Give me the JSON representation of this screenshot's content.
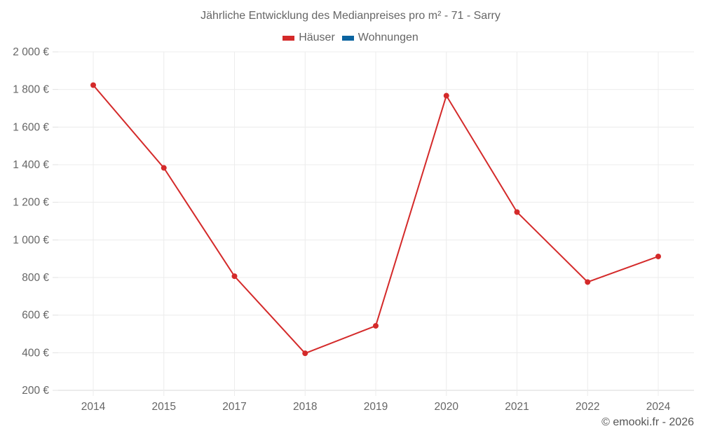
{
  "chart_data": {
    "type": "line",
    "title": "Jährliche Entwicklung des Medianpreises pro m² - 71 - Sarry",
    "xlabel": "",
    "ylabel": "",
    "categories": [
      "2014",
      "2015",
      "2017",
      "2018",
      "2019",
      "2020",
      "2021",
      "2022",
      "2024"
    ],
    "series": [
      {
        "name": "Häuser",
        "color": "#d42a2a",
        "values": [
          1823,
          1383,
          807,
          397,
          543,
          1767,
          1148,
          776,
          912
        ]
      },
      {
        "name": "Wohnungen",
        "color": "#0b64a0",
        "values": []
      }
    ],
    "ylim": [
      200,
      2000
    ],
    "yticks": [
      200,
      400,
      600,
      800,
      1000,
      1200,
      1400,
      1600,
      1800,
      2000
    ],
    "ytick_labels": [
      "200 €",
      "400 €",
      "600 €",
      "800 €",
      "1 000 €",
      "1 200 €",
      "1 400 €",
      "1 600 €",
      "1 800 €",
      "2 000 €"
    ],
    "grid": true,
    "legend_position": "top"
  },
  "header": {
    "title": "Jährliche Entwicklung des Medianpreises pro m² - 71 - Sarry"
  },
  "legend": {
    "items": [
      {
        "label": "Häuser",
        "color": "#d42a2a"
      },
      {
        "label": "Wohnungen",
        "color": "#0b64a0"
      }
    ]
  },
  "footer": {
    "credit": "© emooki.fr - 2026"
  }
}
